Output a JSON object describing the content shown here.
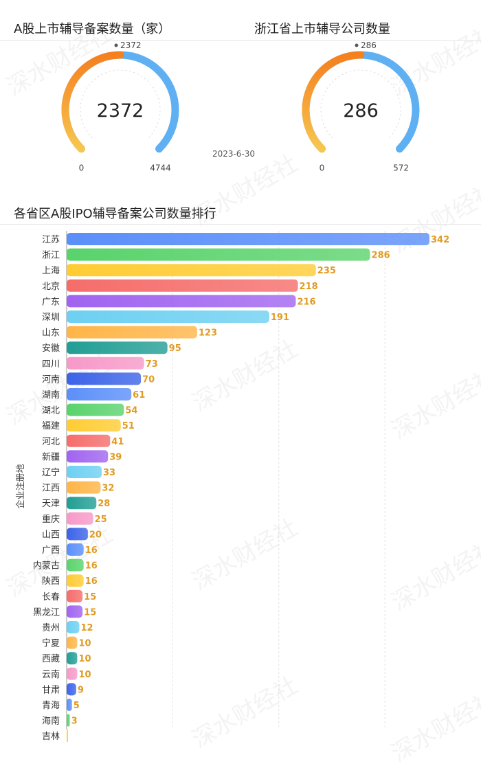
{
  "watermark": "深水财经社",
  "date_label": "2023-6-30",
  "gauges": [
    {
      "title": "A股上市辅导备案数量（家）",
      "value": 2372,
      "max": 4744,
      "min": 0,
      "marker_label": "2372",
      "center_label": "2372",
      "min_label": "0",
      "max_label": "4744"
    },
    {
      "title": "浙江省上市辅导公司数量",
      "value": 286,
      "max": 572,
      "min": 0,
      "marker_label": "286",
      "center_label": "286",
      "min_label": "0",
      "max_label": "572"
    }
  ],
  "colors": {
    "gauge_start": "#f7c64f",
    "gauge_mid": "#f5801e",
    "gauge_track": "#5eb0f3",
    "value_label": "#e09b22",
    "palette": [
      "#5b8ff9",
      "#5ad36c",
      "#ffcc33",
      "#f56d6b",
      "#a064f0",
      "#6dd0f2",
      "#ffb547",
      "#229e94",
      "#f799c8",
      "#3c63e8"
    ]
  },
  "chart_data": {
    "type": "bar",
    "orientation": "horizontal",
    "title": "各省区A股IPO辅导备案公司数量排行",
    "ylabel": "企业注册地",
    "xlabel": "",
    "xlim": [
      0,
      360
    ],
    "categories": [
      "江苏",
      "浙江",
      "上海",
      "北京",
      "广东",
      "深圳",
      "山东",
      "安徽",
      "四川",
      "河南",
      "湖南",
      "湖北",
      "福建",
      "河北",
      "新疆",
      "辽宁",
      "江西",
      "天津",
      "重庆",
      "山西",
      "广西",
      "内蒙古",
      "陕西",
      "长春",
      "黑龙江",
      "贵州",
      "宁夏",
      "西藏",
      "云南",
      "甘肃",
      "青海",
      "海南",
      "吉林"
    ],
    "values": [
      342,
      286,
      235,
      218,
      216,
      191,
      123,
      95,
      73,
      70,
      61,
      54,
      51,
      41,
      39,
      33,
      32,
      28,
      25,
      20,
      16,
      16,
      16,
      15,
      15,
      12,
      10,
      10,
      10,
      9,
      5,
      3,
      1
    ],
    "value_labels": [
      "342",
      "286",
      "235",
      "218",
      "216",
      "191",
      "123",
      "95",
      "73",
      "70",
      "61",
      "54",
      "51",
      "41",
      "39",
      "33",
      "32",
      "28",
      "25",
      "20",
      "16",
      "16",
      "16",
      "15",
      "15",
      "12",
      "10",
      "10",
      "10",
      "9",
      "5",
      "3",
      ""
    ]
  }
}
